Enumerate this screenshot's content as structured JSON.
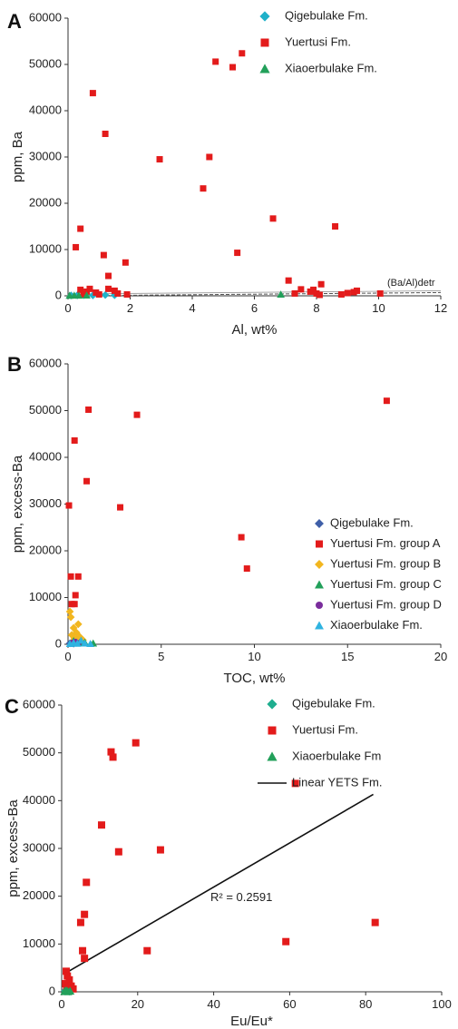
{
  "chart_data": [
    {
      "panel": "A",
      "type": "scatter",
      "xlabel": "Al, wt%",
      "ylabel": "ppm, Ba",
      "xlim": [
        0,
        12
      ],
      "ylim": [
        0,
        60000
      ],
      "xticks": [
        "0",
        "2",
        "4",
        "6",
        "8",
        "10",
        "12"
      ],
      "yticks": [
        "0",
        "10000",
        "20000",
        "30000",
        "40000",
        "50000",
        "60000"
      ],
      "legend_position": "top-right",
      "annotation": "(Ba/Al)detr",
      "reference_line": {
        "x": [
          0,
          12
        ],
        "y": [
          0,
          700
        ],
        "style": "dashed"
      },
      "series": [
        {
          "name": "Qigebulake Fm.",
          "marker": "diamond",
          "color": "#1fb1c9",
          "points": [
            [
              0.1,
              80
            ],
            [
              0.3,
              120
            ],
            [
              0.5,
              150
            ],
            [
              0.8,
              100
            ],
            [
              1.2,
              180
            ],
            [
              1.5,
              130
            ]
          ]
        },
        {
          "name": "Yuertusi Fm.",
          "marker": "square",
          "color": "#e31b1b",
          "points": [
            [
              0.8,
              43800
            ],
            [
              1.2,
              35000
            ],
            [
              2.95,
              29500
            ],
            [
              4.55,
              30000
            ],
            [
              4.35,
              23200
            ],
            [
              4.75,
              50600
            ],
            [
              5.3,
              49400
            ],
            [
              5.6,
              52400
            ],
            [
              6.6,
              16700
            ],
            [
              8.6,
              15000
            ],
            [
              5.45,
              9300
            ],
            [
              0.25,
              10500
            ],
            [
              0.4,
              14500
            ],
            [
              1.15,
              8800
            ],
            [
              1.85,
              7200
            ],
            [
              1.3,
              4300
            ],
            [
              0.4,
              1300
            ],
            [
              0.6,
              900
            ],
            [
              0.7,
              1500
            ],
            [
              0.9,
              700
            ],
            [
              1.0,
              300
            ],
            [
              1.3,
              1500
            ],
            [
              1.5,
              1100
            ],
            [
              1.6,
              500
            ],
            [
              1.9,
              300
            ],
            [
              0.5,
              300
            ],
            [
              7.1,
              3300
            ],
            [
              7.5,
              1400
            ],
            [
              7.3,
              500
            ],
            [
              7.8,
              900
            ],
            [
              7.9,
              1300
            ],
            [
              8.0,
              500
            ],
            [
              8.15,
              2500
            ],
            [
              8.8,
              300
            ],
            [
              9.0,
              600
            ],
            [
              9.2,
              800
            ],
            [
              9.3,
              1100
            ],
            [
              10.05,
              500
            ],
            [
              8.1,
              200
            ]
          ]
        },
        {
          "name": "Xiaoerbulake Fm.",
          "marker": "triangle",
          "color": "#22a05a",
          "points": [
            [
              0.05,
              50
            ],
            [
              0.2,
              80
            ],
            [
              0.35,
              60
            ],
            [
              0.6,
              100
            ],
            [
              6.85,
              300
            ]
          ]
        }
      ]
    },
    {
      "panel": "B",
      "type": "scatter",
      "xlabel": "TOC, wt%",
      "ylabel": "ppm, excess-Ba",
      "xlim": [
        0,
        20
      ],
      "ylim": [
        0,
        60000
      ],
      "xticks": [
        "0",
        "5",
        "10",
        "15",
        "20"
      ],
      "yticks": [
        "0",
        "10000",
        "20000",
        "30000",
        "40000",
        "50000",
        "60000"
      ],
      "legend_position": "right",
      "series": [
        {
          "name": "Qigebulake Fm.",
          "marker": "diamond",
          "color": "#3f5fa8",
          "points": [
            [
              0.1,
              200
            ],
            [
              0.2,
              400
            ],
            [
              0.3,
              150
            ],
            [
              0.45,
              300
            ]
          ]
        },
        {
          "name": "Yuertusi Fm. group A",
          "marker": "square",
          "color": "#e31b1b",
          "points": [
            [
              1.1,
              50200
            ],
            [
              3.7,
              49100
            ],
            [
              17.1,
              52100
            ],
            [
              0.35,
              43600
            ],
            [
              1.0,
              34900
            ],
            [
              0.05,
              29700
            ],
            [
              2.8,
              29300
            ],
            [
              9.3,
              22900
            ],
            [
              9.6,
              16200
            ],
            [
              0.15,
              14500
            ],
            [
              0.55,
              14500
            ],
            [
              0.4,
              10500
            ],
            [
              0.2,
              8600
            ],
            [
              0.35,
              8600
            ]
          ]
        },
        {
          "name": "Yuertusi Fm. group B",
          "marker": "diamond",
          "color": "#f2b61f",
          "points": [
            [
              0.1,
              7000
            ],
            [
              0.15,
              5800
            ],
            [
              0.55,
              4300
            ],
            [
              0.3,
              3500
            ],
            [
              0.45,
              2500
            ],
            [
              0.2,
              2000
            ],
            [
              0.6,
              1700
            ],
            [
              0.35,
              1200
            ],
            [
              0.8,
              900
            ],
            [
              0.25,
              600
            ],
            [
              0.5,
              400
            ]
          ]
        },
        {
          "name": "Yuertusi Fm. group C",
          "marker": "triangle",
          "color": "#22a05a",
          "points": [
            [
              0.3,
              700
            ],
            [
              0.6,
              300
            ],
            [
              1.35,
              200
            ],
            [
              0.9,
              400
            ]
          ]
        },
        {
          "name": "Yuertusi Fm. group D",
          "marker": "circle",
          "color": "#7a2d9c",
          "points": [
            [
              0.2,
              300
            ],
            [
              0.4,
              500
            ],
            [
              0.55,
              200
            ]
          ]
        },
        {
          "name": "Xiaoerbulake Fm.",
          "marker": "triangle",
          "color": "#2fb3e0",
          "points": [
            [
              0.1,
              100
            ],
            [
              0.3,
              300
            ],
            [
              0.5,
              150
            ],
            [
              0.7,
              800
            ],
            [
              0.9,
              200
            ],
            [
              1.2,
              100
            ]
          ]
        }
      ]
    },
    {
      "panel": "C",
      "type": "scatter",
      "xlabel": "Eu/Eu*",
      "ylabel": "ppm, excess-Ba",
      "xlim": [
        0,
        100
      ],
      "ylim": [
        0,
        60000
      ],
      "xticks": [
        "0",
        "20",
        "40",
        "60",
        "80",
        "100"
      ],
      "yticks": [
        "0",
        "10000",
        "20000",
        "30000",
        "40000",
        "50000",
        "60000"
      ],
      "legend_position": "top-right",
      "annotation": "R² = 0.2591",
      "trendline": {
        "name": "Linear YETS Fm.",
        "x": [
          1,
          82
        ],
        "y": [
          3900,
          41300
        ]
      },
      "series": [
        {
          "name": "Qigebulake Fm.",
          "marker": "diamond",
          "color": "#1fae8f",
          "points": [
            [
              1.0,
              200
            ],
            [
              1.5,
              400
            ],
            [
              2.0,
              150
            ]
          ]
        },
        {
          "name": "Yuertusi Fm.",
          "marker": "square",
          "color": "#e31b1b",
          "points": [
            [
              13,
              50200
            ],
            [
              13.5,
              49100
            ],
            [
              19.5,
              52100
            ],
            [
              61.5,
              43600
            ],
            [
              10.5,
              34900
            ],
            [
              15,
              29300
            ],
            [
              26,
              29700
            ],
            [
              6.5,
              22900
            ],
            [
              6,
              16200
            ],
            [
              5,
              14500
            ],
            [
              82.5,
              14500
            ],
            [
              59,
              10500
            ],
            [
              5.5,
              8600
            ],
            [
              22.5,
              8600
            ],
            [
              6,
              7000
            ],
            [
              1.2,
              4300
            ],
            [
              1.5,
              3300
            ],
            [
              2.0,
              2500
            ],
            [
              1.0,
              1700
            ],
            [
              2.5,
              1200
            ],
            [
              1.8,
              900
            ],
            [
              3.0,
              600
            ],
            [
              1.3,
              300
            ]
          ]
        },
        {
          "name": "Xiaoerbulake Fm",
          "marker": "triangle",
          "color": "#22a05a",
          "points": [
            [
              0.8,
              100
            ],
            [
              1.2,
              200
            ],
            [
              1.6,
              50
            ],
            [
              2.2,
              150
            ]
          ]
        }
      ]
    }
  ]
}
